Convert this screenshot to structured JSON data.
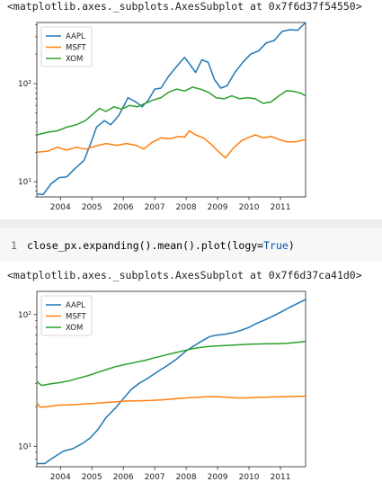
{
  "outputs": [
    {
      "repr": "<matplotlib.axes._subplots.AxesSubplot at 0x7f6d37f54550>"
    },
    {
      "repr": "<matplotlib.axes._subplots.AxesSubplot at 0x7f6d37ca41d0>"
    }
  ],
  "cell": {
    "line_number": "1",
    "code_before": "close_px.expanding().mean().plot(logy=",
    "code_keyword": "True",
    "code_after": ")"
  },
  "chart_data": [
    {
      "type": "line",
      "title": "",
      "xlabel": "",
      "ylabel": "",
      "yscale": "log",
      "xlim": [
        2003.25,
        2011.8
      ],
      "ylim": [
        7,
        420
      ],
      "x_ticks": [
        "2004",
        "2005",
        "2006",
        "2007",
        "2008",
        "2009",
        "2010",
        "2011"
      ],
      "y_ticks": [
        "10¹",
        "10²"
      ],
      "legend_placement": "upper-left",
      "grid": false,
      "series": [
        {
          "name": "AAPL",
          "color": "#1f77b4",
          "x": [
            2003.25,
            2003.45,
            2003.7,
            2003.95,
            2004.2,
            2004.5,
            2004.75,
            2004.95,
            2005.15,
            2005.4,
            2005.6,
            2005.85,
            2006.05,
            2006.15,
            2006.4,
            2006.6,
            2006.8,
            2007.0,
            2007.2,
            2007.45,
            2007.7,
            2007.95,
            2008.1,
            2008.3,
            2008.5,
            2008.7,
            2008.9,
            2009.1,
            2009.3,
            2009.55,
            2009.8,
            2010.05,
            2010.3,
            2010.55,
            2010.8,
            2011.05,
            2011.3,
            2011.55,
            2011.8
          ],
          "y": [
            7.5,
            7.4,
            9.5,
            11,
            11.2,
            14,
            16.5,
            24,
            36,
            42,
            38,
            47,
            62,
            72,
            65,
            58,
            68,
            88,
            90,
            120,
            150,
            185,
            160,
            130,
            175,
            165,
            110,
            90,
            95,
            130,
            165,
            200,
            215,
            260,
            275,
            340,
            355,
            350,
            420
          ]
        },
        {
          "name": "MSFT",
          "color": "#ff7f0e",
          "x": [
            2003.25,
            2003.6,
            2003.9,
            2004.2,
            2004.5,
            2004.8,
            2005.1,
            2005.45,
            2005.8,
            2006.1,
            2006.4,
            2006.65,
            2006.9,
            2007.2,
            2007.5,
            2007.75,
            2007.95,
            2008.1,
            2008.3,
            2008.55,
            2008.8,
            2009.05,
            2009.25,
            2009.5,
            2009.75,
            2009.95,
            2010.2,
            2010.45,
            2010.7,
            2010.95,
            2011.2,
            2011.5,
            2011.8
          ],
          "y": [
            20,
            20.5,
            22.5,
            21,
            22.5,
            21.5,
            23,
            24.5,
            23.5,
            24.5,
            23.5,
            21.5,
            25,
            28,
            27.5,
            29,
            28.5,
            33,
            30,
            28,
            24,
            20,
            17.5,
            22,
            26,
            28,
            30,
            28,
            29,
            27,
            25.5,
            25.5,
            27
          ]
        },
        {
          "name": "XOM",
          "color": "#2ca02c",
          "x": [
            2003.25,
            2003.6,
            2003.9,
            2004.2,
            2004.5,
            2004.8,
            2005.0,
            2005.25,
            2005.45,
            2005.7,
            2005.95,
            2006.2,
            2006.45,
            2006.7,
            2006.95,
            2007.2,
            2007.45,
            2007.7,
            2007.95,
            2008.2,
            2008.45,
            2008.7,
            2008.95,
            2009.2,
            2009.45,
            2009.7,
            2009.95,
            2010.2,
            2010.45,
            2010.7,
            2010.95,
            2011.2,
            2011.45,
            2011.65,
            2011.8
          ],
          "y": [
            30,
            32,
            33,
            36,
            38,
            42,
            48,
            56,
            52,
            58,
            55,
            60,
            58,
            63,
            68,
            72,
            82,
            88,
            84,
            92,
            88,
            82,
            72,
            70,
            75,
            70,
            72,
            70,
            63,
            65,
            75,
            85,
            83,
            80,
            75
          ]
        }
      ]
    },
    {
      "type": "line",
      "title": "",
      "xlabel": "",
      "ylabel": "",
      "yscale": "log",
      "xlim": [
        2003.25,
        2011.8
      ],
      "ylim": [
        7,
        150
      ],
      "x_ticks": [
        "2004",
        "2005",
        "2006",
        "2007",
        "2008",
        "2009",
        "2010",
        "2011"
      ],
      "y_ticks": [
        "10¹",
        "10²"
      ],
      "legend_placement": "upper-left",
      "grid": false,
      "series": [
        {
          "name": "AAPL",
          "color": "#1f77b4",
          "x": [
            2003.25,
            2003.5,
            2003.8,
            2004.1,
            2004.4,
            2004.7,
            2004.95,
            2005.2,
            2005.45,
            2005.75,
            2006.0,
            2006.25,
            2006.5,
            2006.8,
            2007.1,
            2007.4,
            2007.7,
            2008.0,
            2008.25,
            2008.5,
            2008.75,
            2009.0,
            2009.25,
            2009.5,
            2009.75,
            2010.0,
            2010.25,
            2010.5,
            2010.75,
            2011.0,
            2011.25,
            2011.5,
            2011.8
          ],
          "y": [
            7.4,
            7.4,
            8.3,
            9.2,
            9.6,
            10.5,
            11.6,
            13.5,
            16.5,
            19.5,
            23,
            27,
            30,
            33,
            37,
            41,
            46,
            53,
            58,
            63,
            68,
            70,
            71,
            73,
            76,
            80,
            86,
            91,
            97,
            104,
            112,
            120,
            130
          ]
        },
        {
          "name": "MSFT",
          "color": "#ff7f0e",
          "x": [
            2003.25,
            2003.35,
            2003.6,
            2003.9,
            2004.2,
            2004.5,
            2004.8,
            2005.1,
            2005.4,
            2005.7,
            2006.0,
            2006.3,
            2006.6,
            2006.9,
            2007.2,
            2007.5,
            2007.8,
            2008.1,
            2008.4,
            2008.7,
            2009.0,
            2009.3,
            2009.6,
            2009.9,
            2010.2,
            2010.5,
            2010.8,
            2011.1,
            2011.4,
            2011.8
          ],
          "y": [
            21.5,
            19.8,
            20,
            20.5,
            20.6,
            20.8,
            21,
            21.2,
            21.5,
            21.7,
            22,
            22.1,
            22.2,
            22.3,
            22.5,
            22.8,
            23.1,
            23.4,
            23.6,
            23.8,
            23.8,
            23.6,
            23.3,
            23.3,
            23.5,
            23.6,
            23.7,
            23.8,
            23.9,
            24
          ]
        },
        {
          "name": "XOM",
          "color": "#2ca02c",
          "x": [
            2003.25,
            2003.4,
            2003.7,
            2004.0,
            2004.3,
            2004.6,
            2004.9,
            2005.2,
            2005.5,
            2005.8,
            2006.1,
            2006.4,
            2006.7,
            2007.0,
            2007.3,
            2007.6,
            2007.9,
            2008.2,
            2008.5,
            2008.8,
            2009.1,
            2009.4,
            2009.7,
            2010.0,
            2010.3,
            2010.6,
            2010.9,
            2011.2,
            2011.5,
            2011.8
          ],
          "y": [
            31,
            29,
            29.8,
            30.5,
            31.5,
            33,
            34.5,
            36.5,
            38.5,
            40.5,
            42,
            43.5,
            45,
            47,
            49,
            51,
            53,
            55,
            56.5,
            57.5,
            58,
            58.5,
            59,
            59.5,
            59.8,
            60,
            60.2,
            60.5,
            61.5,
            62.5
          ]
        }
      ]
    }
  ]
}
